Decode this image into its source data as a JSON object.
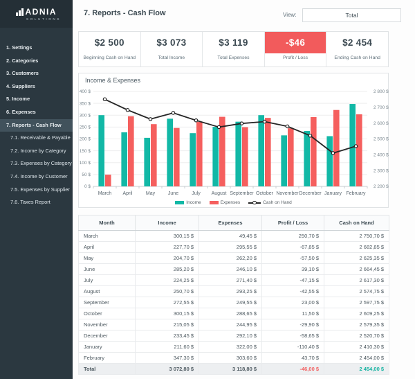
{
  "brand": {
    "name": "ADNIA",
    "subtitle": "SOLUTIONS"
  },
  "header": {
    "title": "7. Reports - Cash Flow",
    "view_label": "View:",
    "view_value": "Total"
  },
  "sidebar": {
    "items": [
      {
        "label": "1. Settings",
        "sub": false,
        "active": false
      },
      {
        "label": "2. Categories",
        "sub": false,
        "active": false
      },
      {
        "label": "3. Customers",
        "sub": false,
        "active": false
      },
      {
        "label": "4. Suppliers",
        "sub": false,
        "active": false
      },
      {
        "label": "5. Income",
        "sub": false,
        "active": false
      },
      {
        "label": "6. Expenses",
        "sub": false,
        "active": false
      },
      {
        "label": "7. Reports - Cash Flow",
        "sub": false,
        "active": true
      },
      {
        "label": "7.1. Receivable & Payable",
        "sub": true,
        "active": false
      },
      {
        "label": "7.2. Income by Category",
        "sub": true,
        "active": false
      },
      {
        "label": "7.3. Expenses by Category",
        "sub": true,
        "active": false
      },
      {
        "label": "7.4. Income by Customer",
        "sub": true,
        "active": false
      },
      {
        "label": "7.5. Expenses by Supplier",
        "sub": true,
        "active": false
      },
      {
        "label": "7.6. Taxes Report",
        "sub": true,
        "active": false
      }
    ]
  },
  "kpis": [
    {
      "value": "$2 500",
      "label": "Beginning Cash on Hand",
      "highlight": false
    },
    {
      "value": "$3 073",
      "label": "Total Income",
      "highlight": false
    },
    {
      "value": "$3 119",
      "label": "Total Expenses",
      "highlight": false
    },
    {
      "value": "-$46",
      "label": "Profit / Loss",
      "highlight": true
    },
    {
      "value": "$2 454",
      "label": "Ending Cash on Hand",
      "highlight": false
    }
  ],
  "chart": {
    "title": "Income & Expenses"
  },
  "chart_data": {
    "type": "bar+line combo",
    "title": "Income & Expenses",
    "categories": [
      "March",
      "April",
      "May",
      "June",
      "July",
      "August",
      "September",
      "October",
      "November",
      "December",
      "January",
      "February"
    ],
    "series": [
      {
        "name": "Income",
        "type": "bar",
        "axis": "left",
        "color": "#12b8a6",
        "values": [
          300.15,
          227.7,
          204.7,
          285.2,
          224.25,
          250.7,
          272.55,
          300.15,
          215.05,
          233.45,
          211.6,
          347.3
        ]
      },
      {
        "name": "Expenses",
        "type": "bar",
        "axis": "left",
        "color": "#f55f5e",
        "values": [
          49.45,
          295.55,
          262.2,
          246.1,
          271.4,
          293.25,
          249.55,
          288.65,
          244.95,
          292.1,
          322.0,
          303.6
        ]
      },
      {
        "name": "Cash on Hand",
        "type": "line",
        "axis": "right",
        "color": "#262626",
        "values": [
          2750.7,
          2682.85,
          2625.35,
          2664.45,
          2617.3,
          2574.75,
          2597.75,
          2609.25,
          2579.35,
          2520.7,
          2410.3,
          2454.0
        ]
      }
    ],
    "left_axis": {
      "min": 0,
      "max": 400,
      "step": 50,
      "suffix": " $"
    },
    "right_axis": {
      "min": 2200,
      "max": 2800,
      "step": 100,
      "suffix": " $"
    },
    "grid": true,
    "legend_position": "bottom"
  },
  "table": {
    "headers": [
      "Month",
      "Income",
      "Expenses",
      "Profit / Loss",
      "Cash on Hand"
    ],
    "rows": [
      [
        "March",
        "300,15 $",
        "49,45 $",
        "250,70 $",
        "2 750,70 $"
      ],
      [
        "April",
        "227,70 $",
        "295,55 $",
        "-67,85 $",
        "2 682,85 $"
      ],
      [
        "May",
        "204,70 $",
        "262,20 $",
        "-57,50 $",
        "2 625,35 $"
      ],
      [
        "June",
        "285,20 $",
        "246,10 $",
        "39,10 $",
        "2 664,45 $"
      ],
      [
        "July",
        "224,25 $",
        "271,40 $",
        "-47,15 $",
        "2 617,30 $"
      ],
      [
        "August",
        "250,70 $",
        "293,25 $",
        "-42,55 $",
        "2 574,75 $"
      ],
      [
        "September",
        "272,55 $",
        "249,55 $",
        "23,00 $",
        "2 597,75 $"
      ],
      [
        "October",
        "300,15 $",
        "288,65 $",
        "11,50 $",
        "2 609,25 $"
      ],
      [
        "November",
        "215,05 $",
        "244,95 $",
        "-29,90 $",
        "2 579,35 $"
      ],
      [
        "December",
        "233,45 $",
        "292,10 $",
        "-58,65 $",
        "2 520,70 $"
      ],
      [
        "January",
        "211,60 $",
        "322,00 $",
        "-110,40 $",
        "2 410,30 $"
      ],
      [
        "February",
        "347,30 $",
        "303,60 $",
        "43,70 $",
        "2 454,00 $"
      ]
    ],
    "total_row": [
      "Total",
      "3 072,80 $",
      "3 118,80 $",
      "-46,00 $",
      "2 454,00 $"
    ]
  },
  "colors": {
    "teal": "#12b8a6",
    "coral": "#f55f5e",
    "kpi_alert_bg": "#f25b5c",
    "positive_text": "#1fbdab",
    "negative_text": "#f4716e",
    "sidebar_bg": "#2b3840",
    "sidebar_active_bg": "#41525c",
    "dark_text": "#3c4a52"
  }
}
